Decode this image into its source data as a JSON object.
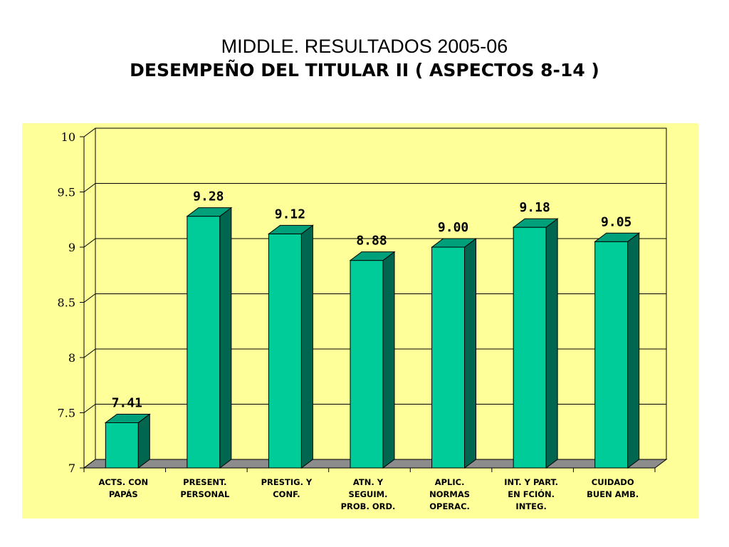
{
  "title": {
    "line1": "MIDDLE. RESULTADOS 2005-06",
    "line2": "DESEMPEÑO DEL TITULAR II ( ASPECTOS 8-14 )"
  },
  "colors": {
    "panel_background": "#ffff99",
    "bar_front": "#00cc99",
    "bar_side": "#006650",
    "bar_top": "#00a07a",
    "floor": "#8c8c8c"
  },
  "chart_data": {
    "type": "bar",
    "categories": [
      [
        "ACTS. CON",
        "PAPÁS"
      ],
      [
        "PRESENT.",
        "PERSONAL"
      ],
      [
        "PRESTIG. Y",
        "CONF."
      ],
      [
        "ATN. Y",
        "SEGUIM.",
        "PROB. ORD."
      ],
      [
        "APLIC.",
        "NORMAS",
        "OPERAC."
      ],
      [
        "INT. Y PART.",
        "EN FCIÓN.",
        "INTEG."
      ],
      [
        "CUIDADO",
        "BUEN AMB."
      ]
    ],
    "values": [
      7.41,
      9.28,
      9.12,
      8.88,
      9.0,
      9.18,
      9.05
    ],
    "value_labels": [
      "7.41",
      "9.28",
      "9.12",
      "8.88",
      "9.00",
      "9.18",
      "9.05"
    ],
    "ylim": [
      7,
      10
    ],
    "yticks": [
      7,
      7.5,
      8,
      8.5,
      9,
      9.5,
      10
    ],
    "ytick_labels": [
      "7",
      "7.5",
      "8",
      "8.5",
      "9",
      "9.5",
      "10"
    ],
    "grid": true,
    "legend": "none",
    "style": "3d-bar"
  }
}
